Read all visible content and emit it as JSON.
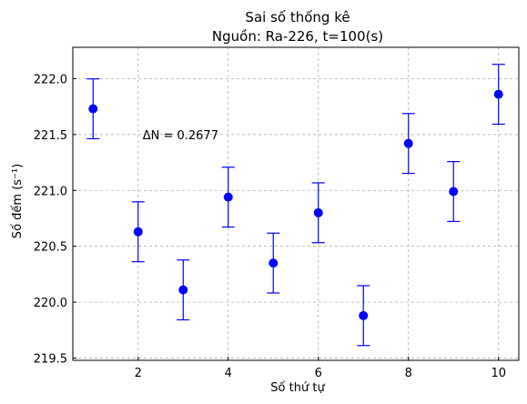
{
  "chart_data": {
    "type": "scatter",
    "title": "Sai số thống kê",
    "subtitle": "Nguồn: Ra-226, t=100(s)",
    "xlabel": "Số thứ tự",
    "ylabel": "Số đếm (s⁻¹)",
    "x": [
      1,
      2,
      3,
      4,
      5,
      6,
      7,
      8,
      9,
      10
    ],
    "y": [
      221.73,
      220.63,
      220.11,
      220.94,
      220.35,
      220.8,
      219.88,
      221.42,
      220.99,
      221.86
    ],
    "error": 0.2677,
    "annotation": {
      "text": "ΔN = 0.2677",
      "x": 2.1,
      "y": 221.5
    },
    "xlim": [
      0.55,
      10.45
    ],
    "ylim": [
      219.48,
      222.28
    ],
    "xticks": [
      2,
      4,
      6,
      8,
      10
    ],
    "yticks": [
      219.5,
      220.0,
      220.5,
      221.0,
      221.5,
      222.0
    ],
    "ytick_labels": [
      "219.5",
      "220.0",
      "220.5",
      "221.0",
      "221.5",
      "222.0"
    ],
    "grid": true,
    "color": "#0000ff"
  }
}
